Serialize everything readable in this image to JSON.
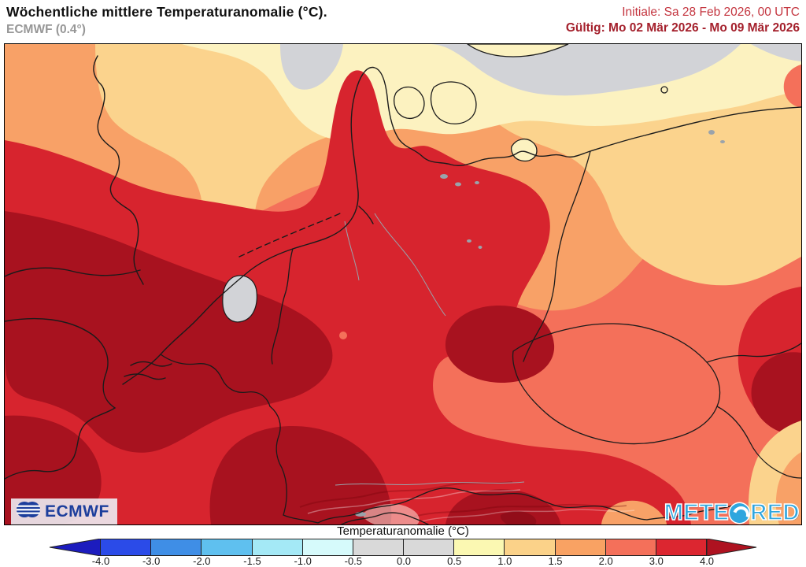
{
  "header": {
    "title": "Wöchentliche mittlere Temperaturanomalie (°C).",
    "model": "ECMWF (0.4°)",
    "init_label": "Initiale: Sa 28 Feb 2026, 00 UTC",
    "valid_label": "Gültig: Mo 02 Mär 2026 - Mo 09 Mär 2026",
    "init_color": "#c4353f",
    "valid_color": "#a4202c"
  },
  "map": {
    "palette": {
      "salmon": "#f4705a",
      "red": "#d7242e",
      "dark_red": "#a8121f",
      "orange": "#f8a167",
      "tan": "#fbd38d",
      "cream": "#fcf2c0",
      "gray_sea": "#d2d3d7",
      "coast": "#1b1b1b",
      "water_detail": "#9aa3ab"
    },
    "logos": {
      "ecmwf": "ECMWF",
      "meteored_left": "METE",
      "meteored_right": "RED"
    }
  },
  "legend": {
    "title": "Temperaturanomalie (°C)",
    "ticks": [
      "-4.0",
      "-3.0",
      "-2.0",
      "-1.5",
      "-1.0",
      "-0.5",
      "0.0",
      "0.5",
      "1.0",
      "1.5",
      "2.0",
      "3.0",
      "4.0"
    ],
    "left_arrow_color": "#1c1cbe",
    "right_arrow_color": "#ae1220",
    "segments": [
      {
        "range": "-4_-3",
        "color": "#2b4be8"
      },
      {
        "range": "-3_-2",
        "color": "#3f8ee6"
      },
      {
        "range": "-2_-1.5",
        "color": "#5fc0ef"
      },
      {
        "range": "-1.5_-1",
        "color": "#a4e9f6"
      },
      {
        "range": "-1_-0.5",
        "color": "#d6fafb"
      },
      {
        "range": "-0.5_0",
        "color": "#d9d9d9"
      },
      {
        "range": "0_0.5",
        "color": "#d9d9d9"
      },
      {
        "range": "0.5_1",
        "color": "#fbf8b2"
      },
      {
        "range": "1_1.5",
        "color": "#fbd289"
      },
      {
        "range": "1.5_2",
        "color": "#f9a263"
      },
      {
        "range": "2_3",
        "color": "#f4705a"
      },
      {
        "range": "3_4",
        "color": "#dc2630"
      }
    ]
  }
}
